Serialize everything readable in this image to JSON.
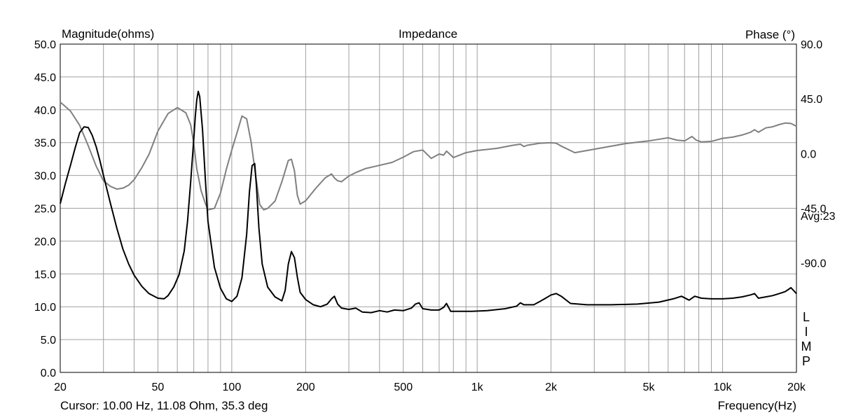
{
  "chart_data": {
    "type": "line",
    "title": "Impedance",
    "ylabel_left": "Magnitude(ohms)",
    "ylabel_right": "Phase (°)",
    "xlabel": "Frequency(Hz)",
    "x_scale": "log",
    "xlim": [
      20,
      20000
    ],
    "ylim_left": [
      0,
      50
    ],
    "ylim_right": [
      -180,
      90
    ],
    "x_ticks": [
      {
        "value": 20,
        "label": "20"
      },
      {
        "value": 50,
        "label": "50"
      },
      {
        "value": 100,
        "label": "100"
      },
      {
        "value": 200,
        "label": "200"
      },
      {
        "value": 500,
        "label": "500"
      },
      {
        "value": 1000,
        "label": "1k"
      },
      {
        "value": 2000,
        "label": "2k"
      },
      {
        "value": 5000,
        "label": "5k"
      },
      {
        "value": 10000,
        "label": "10k"
      },
      {
        "value": 20000,
        "label": "20k"
      }
    ],
    "y_left_ticks": [
      {
        "value": 0,
        "label": "0.0"
      },
      {
        "value": 5,
        "label": "5.0"
      },
      {
        "value": 10,
        "label": "10.0"
      },
      {
        "value": 15,
        "label": "15.0"
      },
      {
        "value": 20,
        "label": "20.0"
      },
      {
        "value": 25,
        "label": "25.0"
      },
      {
        "value": 30,
        "label": "30.0"
      },
      {
        "value": 35,
        "label": "35.0"
      },
      {
        "value": 40,
        "label": "40.0"
      },
      {
        "value": 45,
        "label": "45.0"
      },
      {
        "value": 50,
        "label": "50.0"
      }
    ],
    "y_right_ticks": [
      {
        "value": 90,
        "label": "90.0"
      },
      {
        "value": 45,
        "label": "45.0"
      },
      {
        "value": 0,
        "label": "0.0"
      },
      {
        "value": -45,
        "label": "-45.0"
      },
      {
        "value": -90,
        "label": "-90.0"
      }
    ],
    "right_note": "Avg:23",
    "side_letters": [
      "L",
      "I",
      "M",
      "P"
    ],
    "cursor_text": "Cursor: 10.00 Hz, 11.08 Ohm, 35.3 deg",
    "grid": true,
    "colors": {
      "magnitude": "#000000",
      "phase": "#808080",
      "grid": "#a0a0a0"
    },
    "series": [
      {
        "axis": "left",
        "x": [
          20,
          21,
          22,
          23,
          24,
          25,
          26,
          27,
          28,
          29,
          30,
          32,
          34,
          36,
          38,
          40,
          43,
          46,
          50,
          53,
          55,
          58,
          61,
          64,
          66,
          68,
          70,
          71,
          72,
          73,
          74,
          76,
          78,
          80,
          85,
          90,
          95,
          100,
          105,
          110,
          115,
          118,
          121,
          124,
          126,
          129,
          133,
          140,
          150,
          160,
          165,
          170,
          175,
          180,
          185,
          190,
          200,
          215,
          230,
          245,
          255,
          262,
          270,
          280,
          300,
          320,
          340,
          370,
          400,
          430,
          460,
          500,
          540,
          560,
          580,
          600,
          650,
          700,
          730,
          750,
          780,
          850,
          950,
          1100,
          1300,
          1450,
          1500,
          1550,
          1700,
          1800,
          1900,
          2000,
          2100,
          2200,
          2400,
          2800,
          3500,
          4500,
          5500,
          6300,
          6800,
          7300,
          7700,
          8200,
          9000,
          10000,
          11000,
          12000,
          13000,
          13500,
          14000,
          15000,
          16000,
          17000,
          18000,
          19000,
          20000
        ],
        "values": [
          25.7,
          28.8,
          31.5,
          34.2,
          36.5,
          37.4,
          37.3,
          36.1,
          34.4,
          32.3,
          30.0,
          25.8,
          22.0,
          18.8,
          16.5,
          14.8,
          13.1,
          12.0,
          11.3,
          11.2,
          11.7,
          13.0,
          14.9,
          18.5,
          23.0,
          29.0,
          35.5,
          39.0,
          41.5,
          42.8,
          42.0,
          37.0,
          29.5,
          23.0,
          16.0,
          12.8,
          11.2,
          10.8,
          11.6,
          14.4,
          21.0,
          27.5,
          31.5,
          31.8,
          28.5,
          22.0,
          16.5,
          13.0,
          11.5,
          10.9,
          12.5,
          16.5,
          18.4,
          17.5,
          14.5,
          12.2,
          11.1,
          10.3,
          10.0,
          10.4,
          11.2,
          11.6,
          10.4,
          9.8,
          9.6,
          9.8,
          9.2,
          9.1,
          9.4,
          9.2,
          9.5,
          9.4,
          9.8,
          10.4,
          10.6,
          9.7,
          9.5,
          9.5,
          9.9,
          10.5,
          9.3,
          9.3,
          9.3,
          9.4,
          9.7,
          10.1,
          10.6,
          10.3,
          10.3,
          10.8,
          11.3,
          11.8,
          12.0,
          11.6,
          10.5,
          10.3,
          10.3,
          10.4,
          10.7,
          11.2,
          11.6,
          11.0,
          11.6,
          11.3,
          11.2,
          11.2,
          11.3,
          11.5,
          11.8,
          12.0,
          11.3,
          11.5,
          11.7,
          12.0,
          12.3,
          12.9,
          12.0
        ]
      },
      {
        "axis": "right",
        "x": [
          20,
          22,
          24,
          26,
          28,
          30,
          32,
          34,
          36,
          38,
          40,
          43,
          46,
          50,
          55,
          60,
          65,
          68,
          70,
          72,
          75,
          78,
          80,
          85,
          90,
          95,
          100,
          105,
          110,
          115,
          120,
          125,
          130,
          135,
          140,
          150,
          160,
          170,
          175,
          180,
          185,
          190,
          200,
          220,
          240,
          255,
          262,
          270,
          280,
          300,
          320,
          350,
          400,
          450,
          500,
          550,
          600,
          650,
          700,
          730,
          750,
          800,
          900,
          1000,
          1200,
          1400,
          1500,
          1550,
          1600,
          1800,
          2000,
          2100,
          2200,
          2500,
          3000,
          4000,
          5000,
          6000,
          6500,
          7000,
          7500,
          7800,
          8200,
          9000,
          10000,
          11000,
          12000,
          13000,
          13500,
          14000,
          15000,
          16000,
          17000,
          18000,
          19000,
          20000
        ],
        "values": [
          42.3,
          35.0,
          23.3,
          6.5,
          -10.3,
          -22.4,
          -27.0,
          -29.2,
          -28.5,
          -26.0,
          -21.5,
          -11.6,
          -0.7,
          18.4,
          32.9,
          37.8,
          33.5,
          23.7,
          8.5,
          -12.5,
          -30.6,
          -41.0,
          -46.3,
          -45.1,
          -32.4,
          -13.0,
          2.9,
          17.0,
          30.8,
          28.6,
          9.0,
          -17.4,
          -41.9,
          -46.3,
          -45.1,
          -39.2,
          -23.2,
          -5.7,
          -4.7,
          -14.1,
          -34.4,
          -41.6,
          -38.9,
          -28.6,
          -20.1,
          -16.8,
          -20.1,
          -22.4,
          -23.2,
          -18.5,
          -15.7,
          -12.4,
          -9.7,
          -7.3,
          -3.0,
          1.5,
          2.9,
          -4.0,
          -0.4,
          -1.3,
          2.0,
          -3.3,
          0.7,
          2.5,
          4.2,
          6.8,
          7.7,
          5.8,
          6.8,
          8.5,
          8.9,
          8.5,
          6.1,
          0.7,
          3.6,
          8.1,
          10.4,
          13.0,
          11.1,
          10.4,
          14.0,
          11.1,
          9.5,
          10.0,
          12.5,
          13.5,
          15.2,
          17.5,
          19.6,
          17.5,
          21.1,
          22.0,
          23.8,
          25.1,
          24.7,
          22.4
        ]
      }
    ]
  }
}
